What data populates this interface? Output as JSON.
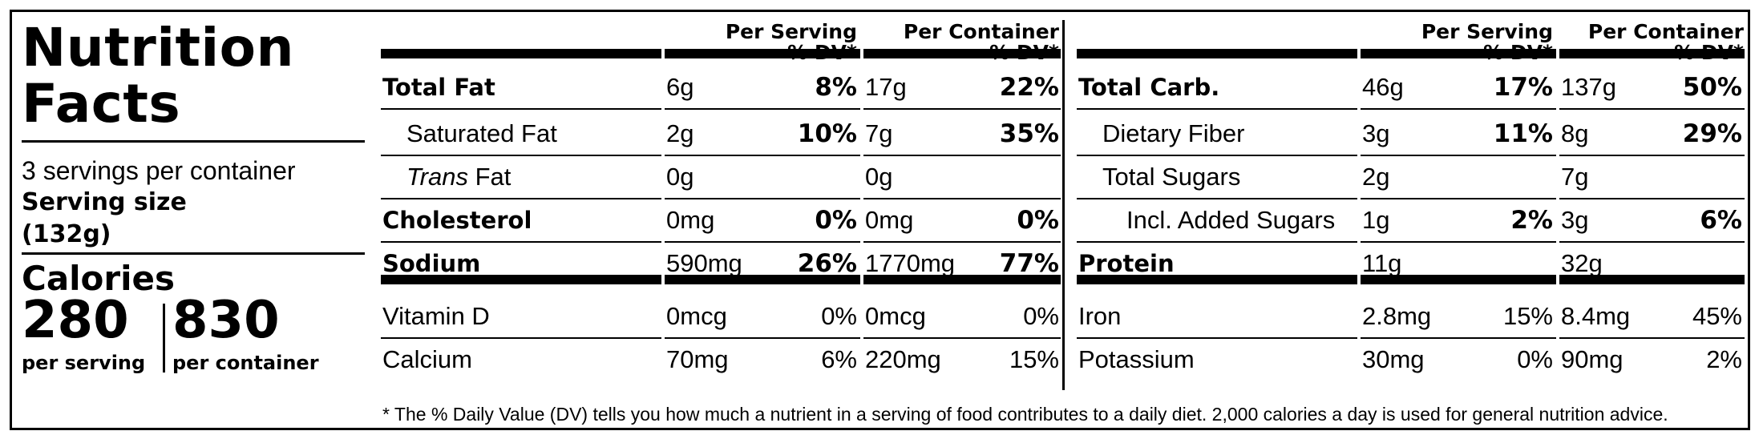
{
  "title_line1": "Nutrition",
  "title_line2": "Facts",
  "servings_per_container": "3 servings per container",
  "serving_size_label": "Serving size",
  "serving_size_value": "(132g)",
  "calories_label": "Calories",
  "calories_per_serving": "280",
  "calories_per_container": "830",
  "per_serving_label": "per serving",
  "per_container_label": "per container",
  "headers": {
    "per_serving": "Per Serving",
    "per_container": "Per Container",
    "dv": "% DV*"
  },
  "left_rows": [
    {
      "name": "Total Fat",
      "bold": true,
      "indent": 0,
      "s_amt": "6g",
      "s_dv": "8%",
      "c_amt": "17g",
      "c_dv": "22%"
    },
    {
      "name": "Saturated Fat",
      "bold": false,
      "indent": 1,
      "s_amt": "2g",
      "s_dv": "10%",
      "c_amt": "7g",
      "c_dv": "35%"
    },
    {
      "name": "Fat",
      "italic_prefix": "Trans",
      "bold": false,
      "indent": 1,
      "s_amt": "0g",
      "s_dv": "",
      "c_amt": "0g",
      "c_dv": ""
    },
    {
      "name": "Cholesterol",
      "bold": true,
      "indent": 0,
      "s_amt": "0mg",
      "s_dv": "0%",
      "c_amt": "0mg",
      "c_dv": "0%"
    },
    {
      "name": "Sodium",
      "bold": true,
      "indent": 0,
      "s_amt": "590mg",
      "s_dv": "26%",
      "c_amt": "1770mg",
      "c_dv": "77%"
    },
    {
      "name": "Vitamin D",
      "bold": false,
      "indent": 0,
      "s_amt": "0mcg",
      "s_dv": "0%",
      "c_amt": "0mcg",
      "c_dv": "0%"
    },
    {
      "name": "Calcium",
      "bold": false,
      "indent": 0,
      "s_amt": "70mg",
      "s_dv": "6%",
      "c_amt": "220mg",
      "c_dv": "15%"
    }
  ],
  "right_rows": [
    {
      "name": "Total Carb.",
      "bold": true,
      "indent": 0,
      "s_amt": "46g",
      "s_dv": "17%",
      "c_amt": "137g",
      "c_dv": "50%"
    },
    {
      "name": "Dietary Fiber",
      "bold": false,
      "indent": 1,
      "s_amt": "3g",
      "s_dv": "11%",
      "c_amt": "8g",
      "c_dv": "29%"
    },
    {
      "name": "Total Sugars",
      "bold": false,
      "indent": 1,
      "s_amt": "2g",
      "s_dv": "",
      "c_amt": "7g",
      "c_dv": ""
    },
    {
      "name": "Incl. Added Sugars",
      "bold": false,
      "indent": 2,
      "s_amt": "1g",
      "s_dv": "2%",
      "c_amt": "3g",
      "c_dv": "6%"
    },
    {
      "name": "Protein",
      "bold": true,
      "indent": 0,
      "s_amt": "11g",
      "s_dv": "",
      "c_amt": "32g",
      "c_dv": ""
    },
    {
      "name": "Iron",
      "bold": false,
      "indent": 0,
      "s_amt": "2.8mg",
      "s_dv": "15%",
      "c_amt": "8.4mg",
      "c_dv": "45%"
    },
    {
      "name": "Potassium",
      "bold": false,
      "indent": 0,
      "s_amt": "30mg",
      "s_dv": "0%",
      "c_amt": "90mg",
      "c_dv": "2%"
    }
  ],
  "footnote": "* The % Daily Value (DV) tells you how much a nutrient in a serving of food contributes to a daily diet. 2,000 calories a day is used for general nutrition advice."
}
